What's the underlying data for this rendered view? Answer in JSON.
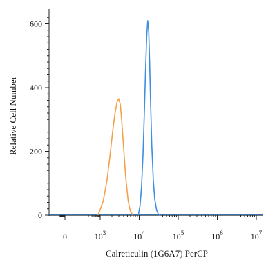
{
  "chart_data": {
    "type": "line",
    "title": "",
    "xlabel": "Calreticulin (1G6A7) PerCP",
    "ylabel": "Relative Cell Number",
    "x_scale": "biexponential",
    "xlim": [
      -1000,
      10000000
    ],
    "ylim": [
      0,
      640
    ],
    "y_ticks": [
      0,
      200,
      400,
      600
    ],
    "x_ticks": [
      {
        "value": 0,
        "base": "0",
        "exp": ""
      },
      {
        "value": 1000,
        "base": "10",
        "exp": "3"
      },
      {
        "value": 10000,
        "base": "10",
        "exp": "4"
      },
      {
        "value": 100000,
        "base": "10",
        "exp": "5"
      },
      {
        "value": 1000000,
        "base": "10",
        "exp": "6"
      },
      {
        "value": 10000000,
        "base": "10",
        "exp": "7"
      }
    ],
    "grid": false,
    "legend": "none",
    "series": [
      {
        "color": "#f5a04a",
        "x": [
          630,
          900,
          1200,
          1500,
          1800,
          2100,
          2400,
          2700,
          3000,
          3300,
          3600,
          4000,
          4500,
          5200,
          6000,
          7000
        ],
        "y": [
          0,
          12,
          45,
          110,
          190,
          265,
          320,
          355,
          365,
          345,
          290,
          210,
          120,
          45,
          10,
          0
        ]
      },
      {
        "color": "#3d8fe0",
        "x": [
          9500,
          10500,
          11500,
          12500,
          13500,
          14500,
          15500,
          16500,
          17500,
          18500,
          19500,
          21000,
          23000,
          25000,
          28000,
          31000,
          34000
        ],
        "y": [
          0,
          30,
          90,
          190,
          320,
          450,
          560,
          610,
          580,
          480,
          360,
          220,
          110,
          50,
          15,
          3,
          0
        ]
      }
    ]
  }
}
